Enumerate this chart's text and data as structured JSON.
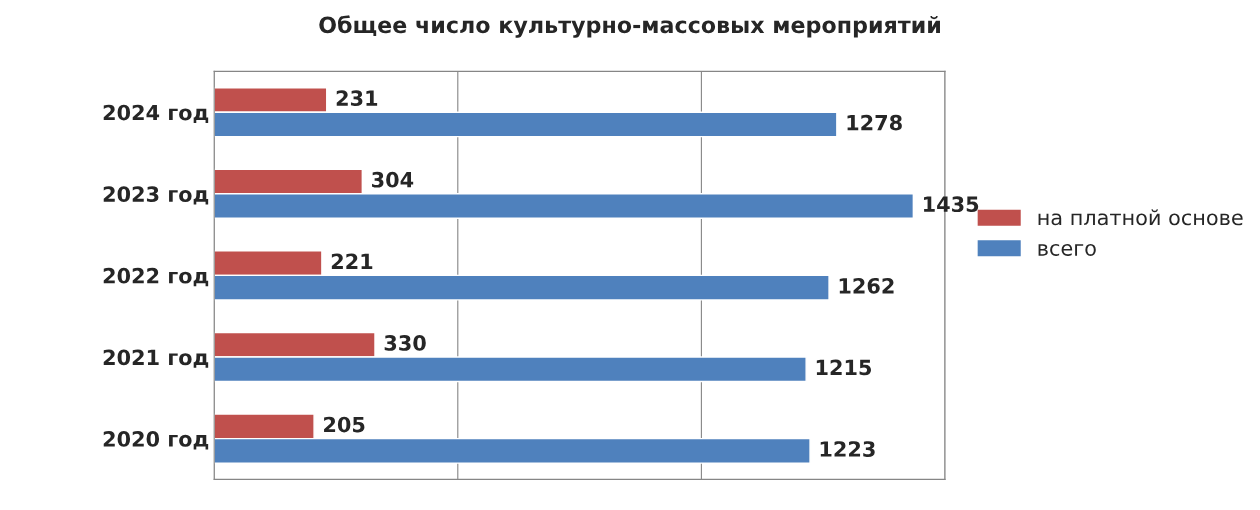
{
  "chart_data": {
    "type": "bar",
    "orientation": "horizontal",
    "title": "Общее число культурно-массовых мероприятий",
    "categories": [
      "2024 год",
      "2023 год",
      "2022 год",
      "2021 год",
      "2020 год"
    ],
    "series": [
      {
        "name": "на платной основе",
        "color": "#c0504d",
        "values": [
          231,
          304,
          221,
          330,
          205
        ]
      },
      {
        "name": "всего",
        "color": "#4f81bd",
        "values": [
          1278,
          1435,
          1262,
          1215,
          1223
        ]
      }
    ],
    "xlim": [
      0,
      1500
    ],
    "xticks": [
      {
        "value": 0,
        "label": null
      },
      {
        "value": 500,
        "label": null
      },
      {
        "value": 1000,
        "label": null
      },
      {
        "value": 1500,
        "label": null
      }
    ],
    "tick_labels": "y",
    "grid": "x",
    "data_labels": true,
    "legend": "right"
  }
}
